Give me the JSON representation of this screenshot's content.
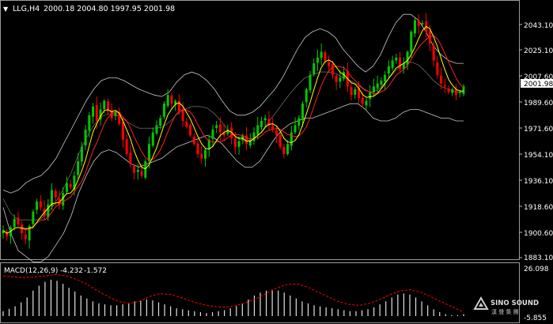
{
  "header": {
    "symbol": "LLG,H4",
    "ohlc": "2000.18 2004.80 1997.95 2001.98"
  },
  "price_axis": {
    "ticks": [
      "2043.10",
      "2025.10",
      "2007.60",
      "1989.60",
      "1971.60",
      "1954.10",
      "1936.10",
      "1918.60",
      "1900.60",
      "1883.10"
    ],
    "current_price": "2001.98"
  },
  "macd": {
    "label": "MACD(12,26,9)",
    "value1": "-4.232",
    "value2": "-1.572",
    "axis_top": "26.098",
    "axis_bottom": "-5.855"
  },
  "watermark": {
    "brand": "SINO SOUND",
    "sub": "漢 聲 集 團"
  },
  "colors": {
    "background": "#000000",
    "bull_candle": "#00c800",
    "bear_candle": "#ff0000",
    "ma_fast": "#ffff00",
    "ma_slow": "#ff2020",
    "bollinger": "#c8c8c8",
    "macd_histogram": "#e0e0e0",
    "macd_signal": "#ff0000"
  },
  "chart_data": {
    "type": "candlestick",
    "title": "LLG,H4",
    "ylim": [
      1883.1,
      2051
    ],
    "y_ticks": [
      2043.1,
      2025.1,
      2007.6,
      1989.6,
      1971.6,
      1954.1,
      1936.1,
      1918.6,
      1900.6,
      1883.1
    ],
    "last_bar": {
      "open": 2000.18,
      "high": 2004.8,
      "low": 1997.95,
      "close": 2001.98
    },
    "close_series": [
      1902,
      1898,
      1904,
      1910,
      1906,
      1900,
      1896,
      1905,
      1915,
      1922,
      1918,
      1912,
      1920,
      1930,
      1925,
      1920,
      1928,
      1935,
      1932,
      1940,
      1950,
      1960,
      1972,
      1982,
      1988,
      1978,
      1986,
      1992,
      1985,
      1980,
      1984,
      1976,
      1965,
      1955,
      1948,
      1942,
      1944,
      1940,
      1950,
      1962,
      1970,
      1975,
      1980,
      1990,
      1996,
      1990,
      1992,
      1985,
      1978,
      1974,
      1968,
      1962,
      1955,
      1952,
      1958,
      1965,
      1972,
      1975,
      1970,
      1968,
      1972,
      1966,
      1960,
      1964,
      1968,
      1962,
      1965,
      1970,
      1975,
      1978,
      1980,
      1975,
      1972,
      1968,
      1960,
      1955,
      1962,
      1970,
      1975,
      1980,
      1990,
      2000,
      2010,
      2018,
      2022,
      2026,
      2020,
      2016,
      2010,
      2005,
      2008,
      2012,
      2002,
      1996,
      2000,
      1994,
      1990,
      1992,
      1998,
      2002,
      2004,
      2006,
      2010,
      2016,
      2020,
      2022,
      2014,
      2018,
      2026,
      2040,
      2048,
      2044,
      2046,
      2040,
      2032,
      2020,
      2010,
      2004,
      2002,
      1998,
      2000,
      1996,
      1998,
      2002
    ],
    "bollinger_upper": [
      1930,
      1928,
      1930,
      1935,
      1938,
      1940,
      1945,
      1952,
      1962,
      1972,
      1982,
      1992,
      2000,
      2006,
      2008,
      2008,
      2006,
      2003,
      2000,
      1998,
      1996,
      1995,
      1998,
      2005,
      2010,
      2012,
      2010,
      2006,
      2000,
      1992,
      1985,
      1982,
      1982,
      1984,
      1988,
      1994,
      2000,
      2008,
      2018,
      2028,
      2036,
      2040,
      2042,
      2040,
      2036,
      2028,
      2022,
      2016,
      2012,
      2016,
      2024,
      2036,
      2046,
      2052,
      2052,
      2048,
      2040,
      2030,
      2024,
      2020,
      2018,
      2018
    ],
    "bollinger_lower": [
      1918,
      1900,
      1888,
      1884,
      1880,
      1880,
      1884,
      1892,
      1900,
      1912,
      1928,
      1940,
      1950,
      1956,
      1958,
      1956,
      1952,
      1948,
      1946,
      1948,
      1950,
      1952,
      1956,
      1960,
      1962,
      1964,
      1966,
      1968,
      1966,
      1962,
      1956,
      1950,
      1946,
      1946,
      1950,
      1958,
      1966,
      1972,
      1976,
      1978,
      1980,
      1980,
      1982,
      1984,
      1986,
      1988,
      1990,
      1990,
      1986,
      1980,
      1978,
      1978,
      1980,
      1984,
      1986,
      1986,
      1984,
      1982,
      1980,
      1980,
      1978,
      1978
    ],
    "macd": {
      "axis_range": [
        -5.855,
        26.098
      ],
      "signal_shape": [
        0.82,
        0.8,
        0.78,
        0.8,
        0.82,
        0.85,
        0.82,
        0.75,
        0.65,
        0.52,
        0.4,
        0.3,
        0.26,
        0.3,
        0.4,
        0.46,
        0.44,
        0.38,
        0.3,
        0.24,
        0.2,
        0.18,
        0.2,
        0.26,
        0.34,
        0.44,
        0.56,
        0.64,
        0.66,
        0.6,
        0.5,
        0.4,
        0.3,
        0.24,
        0.22,
        0.26,
        0.34,
        0.44,
        0.52,
        0.54,
        0.48,
        0.38,
        0.28,
        0.18,
        0.08
      ],
      "histogram_shape": [
        0.1,
        0.15,
        0.2,
        0.28,
        0.38,
        0.52,
        0.62,
        0.7,
        0.74,
        0.72,
        0.66,
        0.58,
        0.5,
        0.42,
        0.36,
        0.3,
        0.26,
        0.24,
        0.22,
        0.22,
        0.24,
        0.26,
        0.3,
        0.32,
        0.34,
        0.32,
        0.28,
        0.24,
        0.2,
        0.16,
        0.14,
        0.12,
        0.1,
        0.08,
        0.06,
        0.08,
        0.1,
        0.12,
        0.16,
        0.2,
        0.26,
        0.34,
        0.42,
        0.48,
        0.52,
        0.54,
        0.52,
        0.48,
        0.42,
        0.36,
        0.3,
        0.26,
        0.22,
        0.2,
        0.18,
        0.16,
        0.14,
        0.12,
        0.1,
        0.1,
        0.12,
        0.14,
        0.18,
        0.24,
        0.3,
        0.38,
        0.44,
        0.46,
        0.44,
        0.38,
        0.3,
        0.22,
        0.14,
        0.08,
        0.04,
        0.02,
        0.02,
        0.04
      ]
    }
  }
}
